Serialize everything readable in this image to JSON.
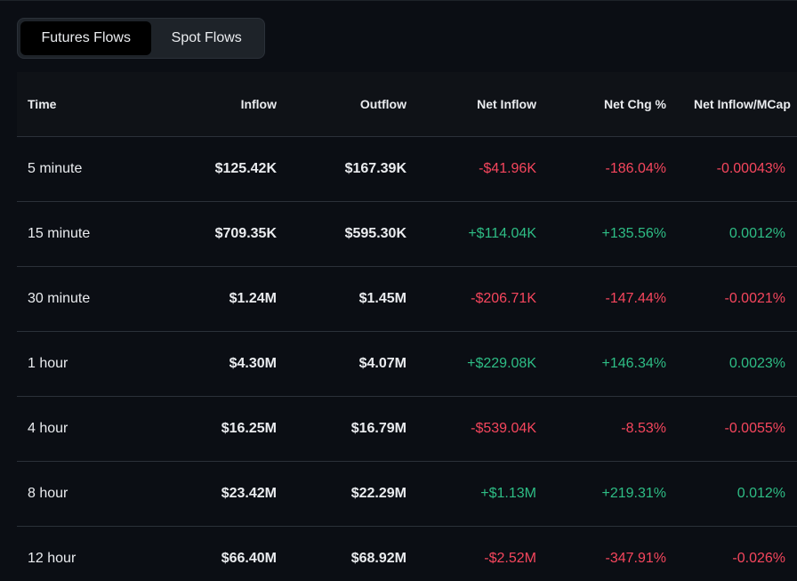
{
  "tabs": [
    {
      "label": "Futures Flows",
      "active": true
    },
    {
      "label": "Spot Flows",
      "active": false
    }
  ],
  "table": {
    "headers": {
      "time": "Time",
      "inflow": "Inflow",
      "outflow": "Outflow",
      "net_inflow": "Net Inflow",
      "net_chg": "Net Chg %",
      "net_mcap": "Net Inflow/MCap"
    },
    "rows": [
      {
        "time": "5 minute",
        "inflow": "$125.42K",
        "outflow": "$167.39K",
        "net_inflow": "-$41.96K",
        "net_chg": "-186.04%",
        "net_mcap": "-0.00043%",
        "sign": "neg"
      },
      {
        "time": "15 minute",
        "inflow": "$709.35K",
        "outflow": "$595.30K",
        "net_inflow": "+$114.04K",
        "net_chg": "+135.56%",
        "net_mcap": "0.0012%",
        "sign": "pos"
      },
      {
        "time": "30 minute",
        "inflow": "$1.24M",
        "outflow": "$1.45M",
        "net_inflow": "-$206.71K",
        "net_chg": "-147.44%",
        "net_mcap": "-0.0021%",
        "sign": "neg"
      },
      {
        "time": "1 hour",
        "inflow": "$4.30M",
        "outflow": "$4.07M",
        "net_inflow": "+$229.08K",
        "net_chg": "+146.34%",
        "net_mcap": "0.0023%",
        "sign": "pos"
      },
      {
        "time": "4 hour",
        "inflow": "$16.25M",
        "outflow": "$16.79M",
        "net_inflow": "-$539.04K",
        "net_chg": "-8.53%",
        "net_mcap": "-0.0055%",
        "sign": "neg"
      },
      {
        "time": "8 hour",
        "inflow": "$23.42M",
        "outflow": "$22.29M",
        "net_inflow": "+$1.13M",
        "net_chg": "+219.31%",
        "net_mcap": "0.012%",
        "sign": "pos"
      },
      {
        "time": "12 hour",
        "inflow": "$66.40M",
        "outflow": "$68.92M",
        "net_inflow": "-$2.52M",
        "net_chg": "-347.91%",
        "net_mcap": "-0.026%",
        "sign": "neg"
      }
    ]
  },
  "colors": {
    "positive": "#2ebd85",
    "negative": "#f6465d",
    "background": "#0b0e14"
  }
}
